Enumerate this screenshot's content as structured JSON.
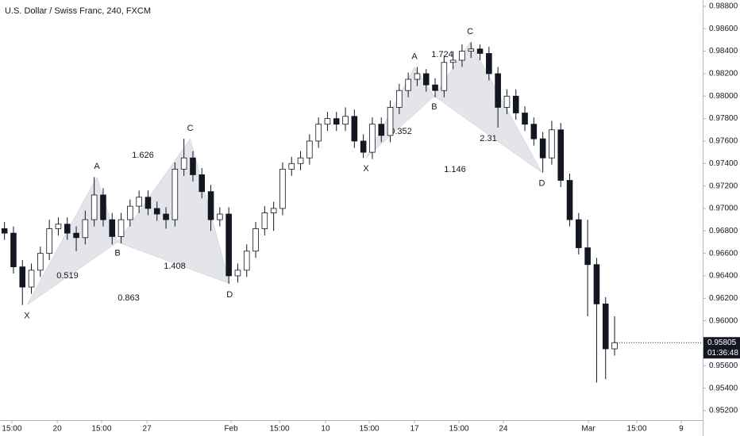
{
  "chart_data": {
    "type": "candlestick",
    "title": "U.S. Dollar / Swiss Franc, 240, FXCM",
    "xlim": [
      0,
      39.16
    ],
    "ylim": [
      0.95115,
      0.98856
    ],
    "xticks": [
      {
        "value": 0.66,
        "label": "15:00"
      },
      {
        "value": 3.19,
        "label": "20"
      },
      {
        "value": 5.66,
        "label": "15:00"
      },
      {
        "value": 8.19,
        "label": "27"
      },
      {
        "value": 12.88,
        "label": "Feb"
      },
      {
        "value": 15.58,
        "label": "15:00"
      },
      {
        "value": 18.14,
        "label": "10"
      },
      {
        "value": 20.58,
        "label": "15:00"
      },
      {
        "value": 23.1,
        "label": "17"
      },
      {
        "value": 25.58,
        "label": "15:00"
      },
      {
        "value": 28.05,
        "label": "24"
      },
      {
        "value": 32.79,
        "label": "Mar"
      },
      {
        "value": 35.49,
        "label": "15:00"
      },
      {
        "value": 37.96,
        "label": "9"
      }
    ],
    "yticks": [
      {
        "value": 0.952,
        "label": "0.95200"
      },
      {
        "value": 0.954,
        "label": "0.95400"
      },
      {
        "value": 0.956,
        "label": "0.95600"
      },
      {
        "value": 0.958,
        "label": "0.95800"
      },
      {
        "value": 0.96,
        "label": "0.96000"
      },
      {
        "value": 0.962,
        "label": "0.96200"
      },
      {
        "value": 0.964,
        "label": "0.96400"
      },
      {
        "value": 0.966,
        "label": "0.96600"
      },
      {
        "value": 0.968,
        "label": "0.96800"
      },
      {
        "value": 0.97,
        "label": "0.97000"
      },
      {
        "value": 0.972,
        "label": "0.97200"
      },
      {
        "value": 0.974,
        "label": "0.97400"
      },
      {
        "value": 0.976,
        "label": "0.97600"
      },
      {
        "value": 0.978,
        "label": "0.97800"
      },
      {
        "value": 0.98,
        "label": "0.98000"
      },
      {
        "value": 0.982,
        "label": "0.98200"
      },
      {
        "value": 0.984,
        "label": "0.98400"
      },
      {
        "value": 0.986,
        "label": "0.98600"
      },
      {
        "value": 0.988,
        "label": "0.98800"
      }
    ],
    "up_color": "#ffffff",
    "down_color": "#131722",
    "x": [
      0.25,
      0.75,
      1.25,
      1.75,
      2.25,
      2.75,
      3.25,
      3.75,
      4.25,
      4.75,
      5.25,
      5.75,
      6.25,
      6.75,
      7.25,
      7.75,
      8.25,
      8.75,
      9.25,
      9.75,
      10.25,
      10.75,
      11.25,
      11.75,
      12.25,
      12.75,
      13.25,
      13.75,
      14.25,
      14.75,
      15.25,
      15.75,
      16.25,
      16.75,
      17.25,
      17.75,
      18.25,
      18.75,
      19.25,
      19.75,
      20.25,
      20.75,
      21.25,
      21.75,
      22.25,
      22.75,
      23.25,
      23.75,
      24.25,
      24.75,
      25.25,
      25.75,
      26.25,
      26.75,
      27.25,
      27.75,
      28.25,
      28.75,
      29.25,
      29.75,
      30.25,
      30.75,
      31.25,
      31.75,
      32.25,
      32.75,
      33.25,
      33.75,
      34.25
    ],
    "open": [
      0.9682,
      0.9678,
      0.9648,
      0.963,
      0.9645,
      0.966,
      0.9682,
      0.9686,
      0.9678,
      0.9674,
      0.969,
      0.9712,
      0.969,
      0.9675,
      0.969,
      0.9702,
      0.971,
      0.97,
      0.9695,
      0.969,
      0.9735,
      0.9745,
      0.973,
      0.9715,
      0.969,
      0.9695,
      0.964,
      0.9645,
      0.9662,
      0.9682,
      0.9696,
      0.97,
      0.9735,
      0.974,
      0.9745,
      0.976,
      0.9775,
      0.978,
      0.9775,
      0.9782,
      0.976,
      0.975,
      0.9775,
      0.9765,
      0.979,
      0.9805,
      0.9815,
      0.982,
      0.981,
      0.9805,
      0.983,
      0.9832,
      0.984,
      0.9842,
      0.9838,
      0.982,
      0.979,
      0.98,
      0.9785,
      0.9775,
      0.9762,
      0.9745,
      0.977,
      0.9725,
      0.969,
      0.9665,
      0.965,
      0.9615,
      0.9575
    ],
    "high": [
      0.9688,
      0.9684,
      0.9654,
      0.9651,
      0.9666,
      0.969,
      0.9692,
      0.9692,
      0.9684,
      0.9698,
      0.9728,
      0.9718,
      0.9696,
      0.9696,
      0.9708,
      0.9716,
      0.9716,
      0.9706,
      0.9701,
      0.9741,
      0.9762,
      0.9751,
      0.9736,
      0.9721,
      0.9701,
      0.9701,
      0.9651,
      0.9668,
      0.9688,
      0.9702,
      0.9706,
      0.9741,
      0.9746,
      0.9751,
      0.9766,
      0.9781,
      0.9786,
      0.9786,
      0.979,
      0.9788,
      0.9766,
      0.9781,
      0.9781,
      0.9796,
      0.9811,
      0.9821,
      0.9826,
      0.9824,
      0.9816,
      0.9836,
      0.984,
      0.9846,
      0.9848,
      0.9846,
      0.9844,
      0.9826,
      0.9806,
      0.9806,
      0.9791,
      0.9781,
      0.9768,
      0.9778,
      0.9776,
      0.9731,
      0.9696,
      0.969,
      0.9656,
      0.9621,
      0.9604
    ],
    "low": [
      0.9672,
      0.9642,
      0.9614,
      0.9624,
      0.9639,
      0.9654,
      0.9676,
      0.9672,
      0.9662,
      0.9668,
      0.9684,
      0.9684,
      0.9668,
      0.9669,
      0.9684,
      0.9696,
      0.9694,
      0.9689,
      0.9682,
      0.9684,
      0.9729,
      0.9724,
      0.9709,
      0.968,
      0.9684,
      0.9633,
      0.9634,
      0.9639,
      0.9656,
      0.9676,
      0.968,
      0.9694,
      0.9729,
      0.9734,
      0.9739,
      0.9754,
      0.9769,
      0.9769,
      0.9769,
      0.9754,
      0.9745,
      0.9744,
      0.9759,
      0.9759,
      0.9784,
      0.9799,
      0.9809,
      0.9804,
      0.9799,
      0.9799,
      0.9824,
      0.9826,
      0.9834,
      0.9832,
      0.9814,
      0.9772,
      0.9784,
      0.9779,
      0.9769,
      0.9756,
      0.9732,
      0.9739,
      0.9719,
      0.9684,
      0.9659,
      0.9604,
      0.9545,
      0.9548,
      0.9569
    ],
    "close": [
      0.9678,
      0.9648,
      0.963,
      0.9645,
      0.966,
      0.9682,
      0.9686,
      0.9678,
      0.9674,
      0.969,
      0.9712,
      0.969,
      0.9675,
      0.969,
      0.9702,
      0.971,
      0.97,
      0.9695,
      0.969,
      0.9735,
      0.9745,
      0.973,
      0.9715,
      0.969,
      0.9695,
      0.964,
      0.9645,
      0.9662,
      0.9682,
      0.9696,
      0.97,
      0.9735,
      0.974,
      0.9745,
      0.976,
      0.9775,
      0.978,
      0.9775,
      0.9782,
      0.976,
      0.975,
      0.9775,
      0.9765,
      0.979,
      0.9805,
      0.9815,
      0.982,
      0.981,
      0.9805,
      0.983,
      0.9832,
      0.984,
      0.9842,
      0.9838,
      0.982,
      0.979,
      0.98,
      0.9785,
      0.9775,
      0.9762,
      0.9745,
      0.977,
      0.9725,
      0.969,
      0.9665,
      0.965,
      0.9615,
      0.9575,
      0.95805
    ],
    "last_price": {
      "value": 0.95805,
      "label": "0.95805"
    },
    "countdown": "01:36:48",
    "patterns": [
      {
        "labels": [
          "X",
          "A",
          "B",
          "C",
          "D"
        ],
        "x": [
          1.5,
          5.4,
          6.55,
          10.6,
          12.8
        ],
        "y": [
          0.9614,
          0.9728,
          0.967,
          0.9762,
          0.9633
        ],
        "ratios": [
          "0.519",
          "1.626",
          "1.408",
          "0.863"
        ]
      },
      {
        "labels": [
          "X",
          "A",
          "B",
          "C",
          "D"
        ],
        "x": [
          20.4,
          23.1,
          24.2,
          26.2,
          30.2
        ],
        "y": [
          0.9745,
          0.9826,
          0.98,
          0.9848,
          0.9732
        ],
        "ratios": [
          "0.352",
          "1.724",
          "2.31",
          "1.146"
        ]
      }
    ]
  }
}
